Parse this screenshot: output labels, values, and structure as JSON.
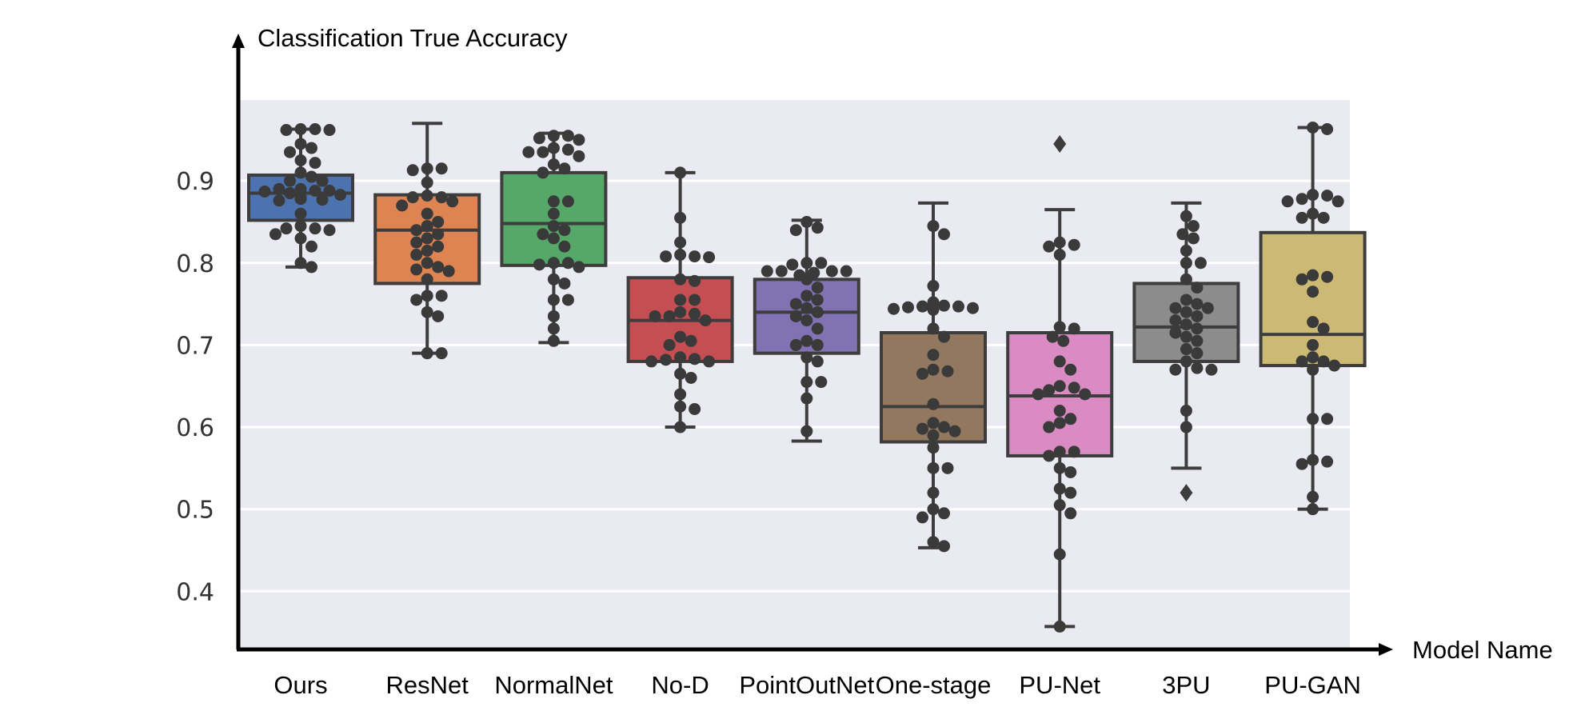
{
  "chart_data": {
    "type": "box",
    "ylabel": "Classification True Accuracy",
    "xlabel": "Model Name",
    "ylim": [
      0.33,
      1.0
    ],
    "y_ticks": [
      "0.4",
      "0.5",
      "0.6",
      "0.7",
      "0.8",
      "0.9"
    ],
    "grid": "horizontal",
    "colors": {
      "plot_bg": "#eaeaf2",
      "grid": "#ffffff",
      "point": "#3a3a3a",
      "box_edge": "#3d3d3d"
    },
    "categories": [
      "Ours",
      "ResNet",
      "NormalNet",
      "No-D",
      "PointOutNet",
      "One-stage",
      "PU-Net",
      "3PU",
      "PU-GAN"
    ],
    "series": [
      {
        "color": "#4c72b0",
        "box": {
          "min": 0.795,
          "q1": 0.852,
          "median": 0.885,
          "q3": 0.907,
          "max": 0.963
        },
        "outliers": [],
        "points": [
          0.963,
          0.963,
          0.962,
          0.962,
          0.945,
          0.94,
          0.935,
          0.925,
          0.922,
          0.91,
          0.905,
          0.9,
          0.9,
          0.89,
          0.89,
          0.888,
          0.888,
          0.887,
          0.885,
          0.883,
          0.88,
          0.878,
          0.877,
          0.876,
          0.86,
          0.845,
          0.842,
          0.842,
          0.84,
          0.835,
          0.83,
          0.82,
          0.8,
          0.795
        ]
      },
      {
        "color": "#dd8452",
        "box": {
          "min": 0.69,
          "q1": 0.775,
          "median": 0.84,
          "q3": 0.883,
          "max": 0.97
        },
        "outliers": [],
        "points": [
          0.915,
          0.915,
          0.913,
          0.898,
          0.882,
          0.88,
          0.88,
          0.875,
          0.87,
          0.86,
          0.85,
          0.845,
          0.84,
          0.835,
          0.83,
          0.825,
          0.82,
          0.815,
          0.81,
          0.8,
          0.795,
          0.792,
          0.79,
          0.78,
          0.76,
          0.76,
          0.755,
          0.74,
          0.735,
          0.69,
          0.69
        ]
      },
      {
        "color": "#55a868",
        "box": {
          "min": 0.703,
          "q1": 0.797,
          "median": 0.848,
          "q3": 0.91,
          "max": 0.958
        },
        "outliers": [],
        "points": [
          0.955,
          0.955,
          0.952,
          0.95,
          0.94,
          0.938,
          0.935,
          0.935,
          0.93,
          0.92,
          0.915,
          0.91,
          0.875,
          0.875,
          0.86,
          0.845,
          0.84,
          0.835,
          0.83,
          0.82,
          0.8,
          0.8,
          0.798,
          0.795,
          0.78,
          0.775,
          0.755,
          0.755,
          0.735,
          0.72,
          0.705
        ]
      },
      {
        "color": "#c44e52",
        "box": {
          "min": 0.6,
          "q1": 0.68,
          "median": 0.73,
          "q3": 0.782,
          "max": 0.91
        },
        "outliers": [],
        "points": [
          0.91,
          0.855,
          0.825,
          0.81,
          0.808,
          0.808,
          0.807,
          0.78,
          0.778,
          0.755,
          0.755,
          0.74,
          0.738,
          0.735,
          0.735,
          0.73,
          0.71,
          0.705,
          0.7,
          0.685,
          0.683,
          0.682,
          0.68,
          0.68,
          0.665,
          0.66,
          0.64,
          0.625,
          0.622,
          0.6
        ]
      },
      {
        "color": "#8172b3",
        "box": {
          "min": 0.583,
          "q1": 0.69,
          "median": 0.74,
          "q3": 0.78,
          "max": 0.852
        },
        "outliers": [],
        "points": [
          0.85,
          0.843,
          0.84,
          0.8,
          0.8,
          0.798,
          0.79,
          0.79,
          0.79,
          0.79,
          0.788,
          0.785,
          0.78,
          0.77,
          0.76,
          0.755,
          0.75,
          0.745,
          0.74,
          0.735,
          0.73,
          0.72,
          0.705,
          0.7,
          0.7,
          0.685,
          0.68,
          0.655,
          0.655,
          0.635,
          0.595
        ]
      },
      {
        "color": "#937860",
        "box": {
          "min": 0.453,
          "q1": 0.582,
          "median": 0.625,
          "q3": 0.715,
          "max": 0.873
        },
        "outliers": [],
        "points": [
          0.845,
          0.835,
          0.772,
          0.752,
          0.748,
          0.747,
          0.747,
          0.746,
          0.745,
          0.744,
          0.743,
          0.72,
          0.71,
          0.688,
          0.67,
          0.668,
          0.665,
          0.628,
          0.605,
          0.6,
          0.598,
          0.595,
          0.59,
          0.575,
          0.55,
          0.55,
          0.52,
          0.5,
          0.495,
          0.49,
          0.46,
          0.455
        ]
      },
      {
        "color": "#da8bc3",
        "box": {
          "min": 0.357,
          "q1": 0.565,
          "median": 0.638,
          "q3": 0.715,
          "max": 0.865
        },
        "outliers": [
          0.945
        ],
        "points": [
          0.825,
          0.822,
          0.82,
          0.81,
          0.722,
          0.72,
          0.71,
          0.705,
          0.68,
          0.67,
          0.65,
          0.648,
          0.645,
          0.64,
          0.64,
          0.62,
          0.61,
          0.605,
          0.6,
          0.57,
          0.57,
          0.565,
          0.55,
          0.545,
          0.525,
          0.52,
          0.505,
          0.495,
          0.445,
          0.357
        ]
      },
      {
        "color": "#8c8c8c",
        "box": {
          "min": 0.55,
          "q1": 0.68,
          "median": 0.722,
          "q3": 0.775,
          "max": 0.873
        },
        "outliers": [
          0.52
        ],
        "points": [
          0.857,
          0.845,
          0.835,
          0.83,
          0.815,
          0.8,
          0.8,
          0.78,
          0.77,
          0.755,
          0.75,
          0.745,
          0.745,
          0.74,
          0.735,
          0.73,
          0.725,
          0.72,
          0.715,
          0.71,
          0.705,
          0.695,
          0.69,
          0.68,
          0.672,
          0.67,
          0.67,
          0.62,
          0.6
        ]
      },
      {
        "color": "#ccb974",
        "box": {
          "min": 0.5,
          "q1": 0.675,
          "median": 0.713,
          "q3": 0.837,
          "max": 0.965
        },
        "outliers": [],
        "points": [
          0.965,
          0.963,
          0.883,
          0.882,
          0.878,
          0.875,
          0.875,
          0.86,
          0.855,
          0.855,
          0.785,
          0.783,
          0.78,
          0.765,
          0.728,
          0.72,
          0.7,
          0.685,
          0.68,
          0.68,
          0.675,
          0.67,
          0.61,
          0.61,
          0.56,
          0.558,
          0.555,
          0.515,
          0.5
        ]
      }
    ]
  }
}
